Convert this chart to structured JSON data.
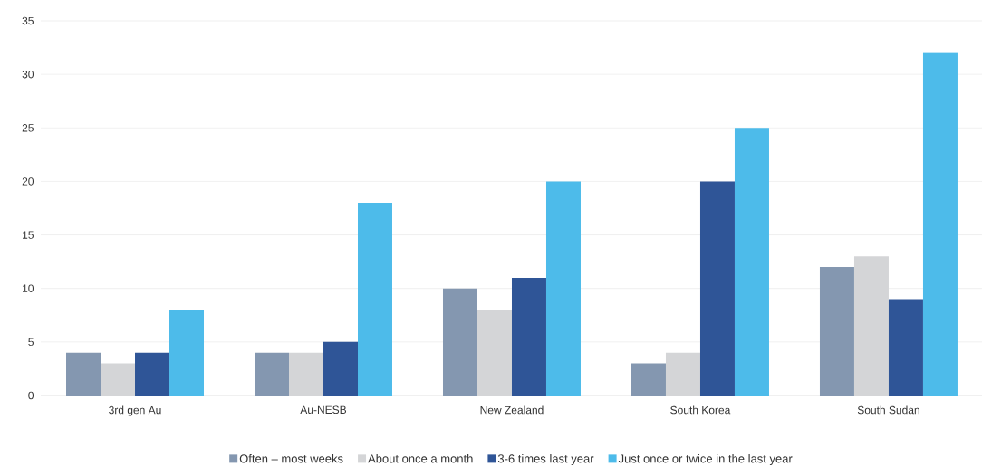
{
  "chart_data": {
    "type": "bar",
    "categories": [
      "3rd gen Au",
      "Au-NESB",
      "New Zealand",
      "South Korea",
      "South Sudan"
    ],
    "series": [
      {
        "name": "Often – most weeks",
        "color": "#8497b0",
        "values": [
          4,
          4,
          10,
          3,
          12
        ]
      },
      {
        "name": "About once a month",
        "color": "#d4d5d7",
        "values": [
          3,
          4,
          8,
          4,
          13
        ]
      },
      {
        "name": "3-6 times last year",
        "color": "#2f5597",
        "values": [
          4,
          5,
          11,
          20,
          9
        ]
      },
      {
        "name": "Just once or twice in the last year",
        "color": "#4dbbea",
        "values": [
          8,
          18,
          20,
          25,
          32
        ]
      }
    ],
    "ylim": [
      0,
      35
    ],
    "yticks": [
      0,
      5,
      10,
      15,
      20,
      25,
      30,
      35
    ],
    "grid": "y",
    "legend": "bottom"
  }
}
